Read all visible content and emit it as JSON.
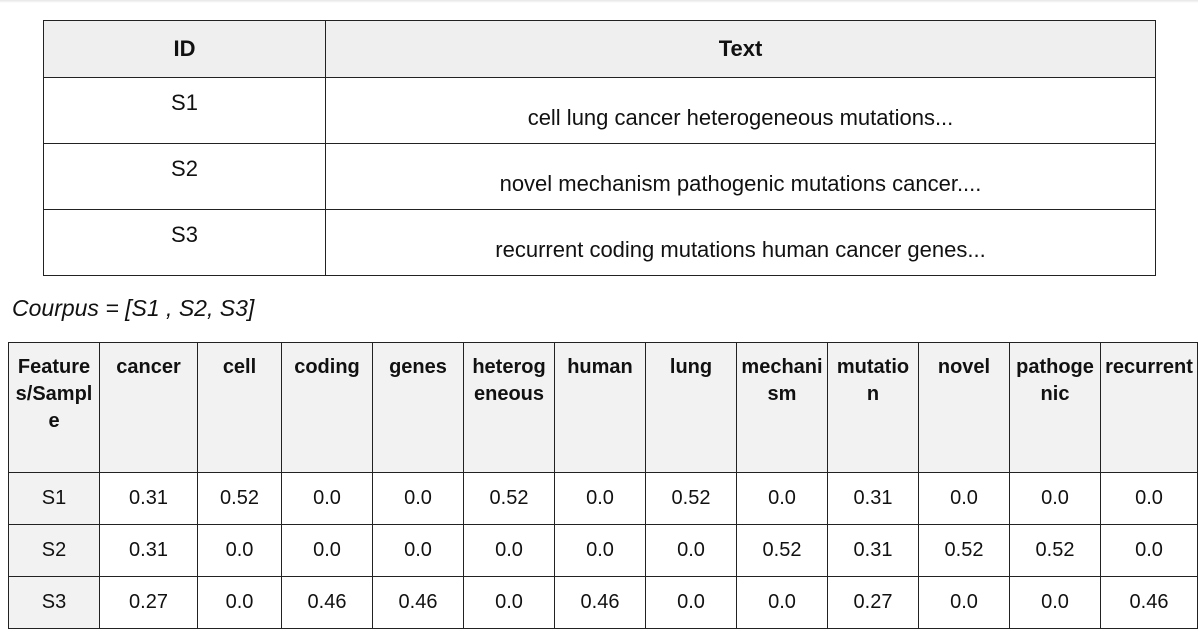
{
  "samples_table": {
    "headers": {
      "id": "ID",
      "text": "Text"
    },
    "rows": [
      {
        "id": "S1",
        "text": "cell lung cancer heterogeneous mutations..."
      },
      {
        "id": "S2",
        "text": "novel mechanism pathogenic mutations cancer...."
      },
      {
        "id": "S3",
        "text": "recurrent coding mutations human cancer genes..."
      }
    ]
  },
  "corpus_label": "Courpus = [S1 , S2, S3]",
  "features_table": {
    "corner": "Features/Sample",
    "columns": [
      "cancer",
      "cell",
      "coding",
      "genes",
      "heterogeneous",
      "human",
      "lung",
      "mechanism",
      "mutation",
      "novel",
      "pathogenic",
      "recurrent"
    ],
    "rows": [
      {
        "sample": "S1",
        "values": [
          "0.31",
          "0.52",
          "0.0",
          "0.0",
          "0.52",
          "0.0",
          "0.52",
          "0.0",
          "0.31",
          "0.0",
          "0.0",
          "0.0"
        ]
      },
      {
        "sample": "S2",
        "values": [
          "0.31",
          "0.0",
          "0.0",
          "0.0",
          "0.0",
          "0.0",
          "0.0",
          "0.52",
          "0.31",
          "0.52",
          "0.52",
          "0.0"
        ]
      },
      {
        "sample": "S3",
        "values": [
          "0.27",
          "0.0",
          "0.46",
          "0.46",
          "0.0",
          "0.46",
          "0.0",
          "0.0",
          "0.27",
          "0.0",
          "0.0",
          "0.46"
        ]
      }
    ]
  }
}
